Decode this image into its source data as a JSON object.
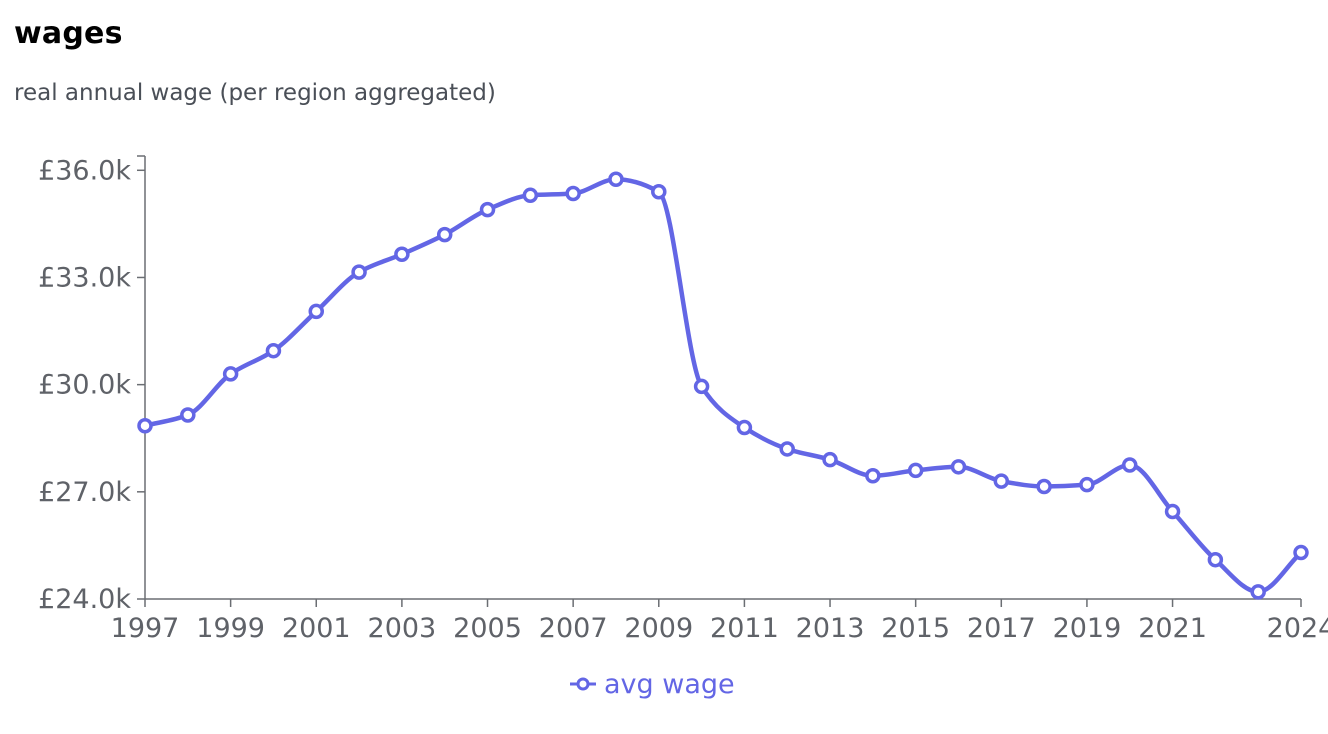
{
  "chart_data": {
    "type": "line",
    "title": "wages",
    "subtitle": "real annual wage (per region aggregated)",
    "ylim": [
      24000,
      36000
    ],
    "yticks": [
      24000,
      27000,
      30000,
      33000,
      36000
    ],
    "ytick_labels": [
      "£24.0k",
      "£27.0k",
      "£30.0k",
      "£33.0k",
      "£36.0k"
    ],
    "xlim": [
      1997,
      2024
    ],
    "xticks": [
      1997,
      1999,
      2001,
      2003,
      2005,
      2007,
      2009,
      2011,
      2013,
      2015,
      2017,
      2019,
      2021,
      2024
    ],
    "xtick_labels": [
      "1997",
      "1999",
      "2001",
      "2003",
      "2005",
      "2007",
      "2009",
      "2011",
      "2013",
      "2015",
      "2017",
      "2019",
      "2021",
      "2024"
    ],
    "grid": false,
    "legend": "bottom-center",
    "series": [
      {
        "name": "avg wage",
        "color": "#6366e5",
        "x": [
          1997,
          1998,
          1999,
          2000,
          2001,
          2002,
          2003,
          2004,
          2005,
          2006,
          2007,
          2008,
          2009,
          2010,
          2011,
          2012,
          2013,
          2014,
          2015,
          2016,
          2017,
          2018,
          2019,
          2020,
          2021,
          2022,
          2023,
          2024
        ],
        "values": [
          28850,
          29150,
          30300,
          30950,
          32050,
          33150,
          33650,
          34200,
          34900,
          35300,
          35350,
          35750,
          35400,
          29950,
          28800,
          28200,
          27900,
          27450,
          27600,
          27700,
          27300,
          27150,
          27200,
          27750,
          26450,
          25100,
          24200,
          25300
        ]
      }
    ]
  }
}
